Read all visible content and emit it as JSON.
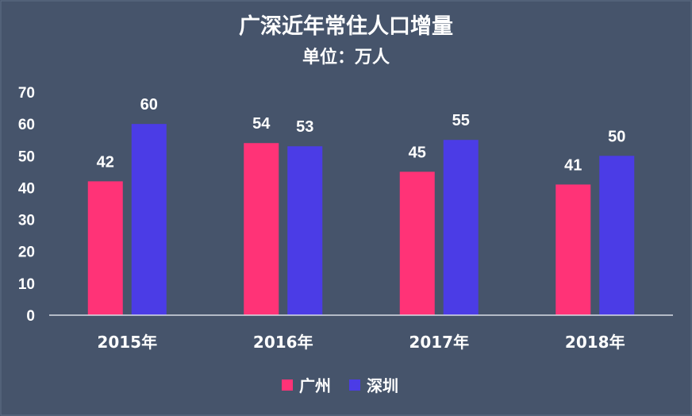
{
  "chart_data": {
    "type": "bar",
    "title": "广深近年常住人口增量",
    "subtitle": "单位：万人",
    "categories": [
      "2015年",
      "2016年",
      "2017年",
      "2018年"
    ],
    "series": [
      {
        "name": "广州",
        "color": "#ff3377",
        "values": [
          42,
          54,
          45,
          41
        ]
      },
      {
        "name": "深圳",
        "color": "#4b3ce6",
        "values": [
          60,
          53,
          55,
          50
        ]
      }
    ],
    "y_ticks": [
      "0",
      "10",
      "20",
      "30",
      "40",
      "50",
      "60",
      "70"
    ],
    "ylim": [
      0,
      70
    ],
    "grid": false,
    "legend_position": "bottom"
  }
}
